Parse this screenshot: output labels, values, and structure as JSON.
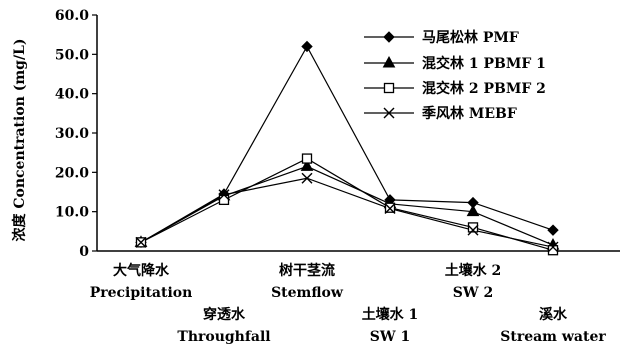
{
  "chart_data": {
    "type": "line",
    "ylabel": "浓度 Concentration (mg/L)",
    "ylim": [
      0,
      60
    ],
    "yticks": [
      "0",
      "10.0",
      "20.0",
      "30.0",
      "40.0",
      "50.0",
      "60.0"
    ],
    "ytick_values": [
      0,
      10,
      20,
      30,
      40,
      50,
      60
    ],
    "categories": [
      {
        "zh": "大气降水",
        "en": "Precipitation",
        "row": "upper"
      },
      {
        "zh": "穿透水",
        "en": "Throughfall",
        "row": "lower"
      },
      {
        "zh": "树干茎流",
        "en": "Stemflow",
        "row": "upper"
      },
      {
        "zh": "土壤水 1",
        "en": "SW 1",
        "row": "lower"
      },
      {
        "zh": "土壤水 2",
        "en": "SW 2",
        "row": "upper"
      },
      {
        "zh": "溪水",
        "en": "Stream water",
        "row": "lower"
      }
    ],
    "series": [
      {
        "name": "马尾松林 PMF",
        "marker": "diamond",
        "values": [
          2.2,
          14.5,
          52.0,
          13.0,
          12.3,
          5.3
        ]
      },
      {
        "name": "混交林 1 PBMF 1",
        "marker": "triangle",
        "values": [
          2.2,
          14.0,
          21.5,
          12.0,
          10.0,
          1.5
        ]
      },
      {
        "name": "混交林 2 PBMF 2",
        "marker": "square-open",
        "values": [
          2.2,
          13.0,
          23.5,
          11.0,
          6.0,
          0.2
        ]
      },
      {
        "name": "季风林 MEBF",
        "marker": "cross",
        "values": [
          2.2,
          14.3,
          18.5,
          10.8,
          5.3,
          1.0
        ]
      }
    ],
    "grid": false,
    "legend_position": "top-right"
  }
}
